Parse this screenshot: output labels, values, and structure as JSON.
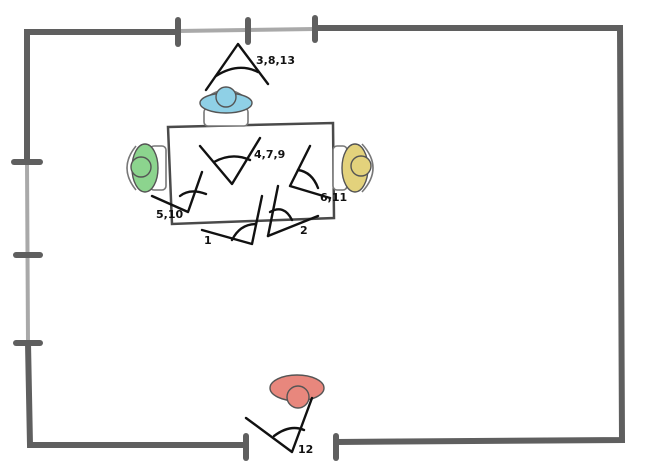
{
  "diagram": {
    "colors": {
      "blue_person": "#8fd0e6",
      "green_person": "#8cd48e",
      "yellow_person": "#e3d27c",
      "red_person": "#e8877d",
      "wall": "#5f5f5f",
      "window": "#a9a9a9"
    },
    "labels": {
      "cam_top": "3,8,13",
      "cam_center": "4,7,9",
      "cam_right": "6,11",
      "cam_left": "5,10",
      "cam_bottom_left": "1",
      "cam_bottom_right": "2",
      "cam_door": "12"
    }
  }
}
